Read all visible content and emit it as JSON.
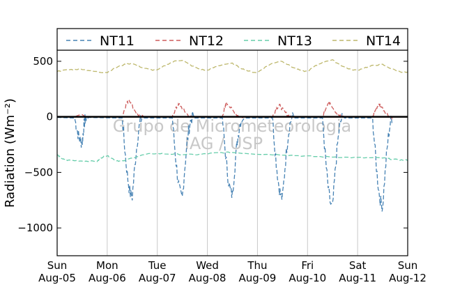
{
  "chart_data": {
    "type": "line",
    "title": "",
    "xlabel": "",
    "ylabel": "Radiation (Wm⁻²)",
    "ylim": [
      -1250,
      600
    ],
    "xlim": [
      0,
      7
    ],
    "x_unit": "days since Sun Aug-05 00:00",
    "xticks": [
      {
        "day": "Sun",
        "date": "Aug-05"
      },
      {
        "day": "Mon",
        "date": "Aug-06"
      },
      {
        "day": "Tue",
        "date": "Aug-07"
      },
      {
        "day": "Wed",
        "date": "Aug-08"
      },
      {
        "day": "Thu",
        "date": "Aug-09"
      },
      {
        "day": "Fri",
        "date": "Aug-10"
      },
      {
        "day": "Sat",
        "date": "Aug-11"
      },
      {
        "day": "Sun",
        "date": "Aug-12"
      }
    ],
    "yticks": [
      500,
      0,
      -500,
      -1000
    ],
    "yticks_labels": [
      "500",
      "0",
      "−500",
      "−1000"
    ],
    "grid": "vertical",
    "legend_position": "top",
    "watermark": [
      "Grupo de Micrometeorologia",
      "IAG / USP"
    ],
    "series": [
      {
        "name": "NT11",
        "color": "#4682b4",
        "kind": "daily_trough",
        "points": [
          [
            0,
            -5
          ],
          [
            0.35,
            -10
          ],
          [
            0.5,
            -230
          ],
          [
            0.58,
            -5
          ],
          [
            1.3,
            -10
          ],
          [
            1.5,
            -720
          ],
          [
            1.7,
            -10
          ],
          [
            2.3,
            -10
          ],
          [
            2.5,
            -730
          ],
          [
            2.7,
            -10
          ],
          [
            3.3,
            -10
          ],
          [
            3.5,
            -700
          ],
          [
            3.7,
            -10
          ],
          [
            4.3,
            -10
          ],
          [
            4.5,
            -730
          ],
          [
            4.7,
            -10
          ],
          [
            5.3,
            -10
          ],
          [
            5.5,
            -820
          ],
          [
            5.7,
            -10
          ],
          [
            6.3,
            -10
          ],
          [
            6.5,
            -800
          ],
          [
            6.7,
            -5
          ]
        ]
      },
      {
        "name": "NT12",
        "color": "#cd5c5c",
        "kind": "daily_peak",
        "points": [
          [
            0,
            0
          ],
          [
            0.35,
            0
          ],
          [
            0.5,
            20
          ],
          [
            0.6,
            0
          ],
          [
            1.3,
            0
          ],
          [
            1.45,
            150
          ],
          [
            1.7,
            0
          ],
          [
            2.3,
            0
          ],
          [
            2.45,
            110
          ],
          [
            2.7,
            0
          ],
          [
            3.3,
            0
          ],
          [
            3.4,
            120
          ],
          [
            3.7,
            0
          ],
          [
            4.3,
            0
          ],
          [
            4.45,
            100
          ],
          [
            4.7,
            0
          ],
          [
            5.3,
            0
          ],
          [
            5.45,
            130
          ],
          [
            5.7,
            0
          ],
          [
            6.3,
            0
          ],
          [
            6.45,
            110
          ],
          [
            6.7,
            0
          ]
        ]
      },
      {
        "name": "NT13",
        "color": "#66cdaa",
        "kind": "baseline",
        "points": [
          [
            0,
            -340
          ],
          [
            0.2,
            -390
          ],
          [
            0.8,
            -400
          ],
          [
            1.0,
            -350
          ],
          [
            1.3,
            -400
          ],
          [
            2.0,
            -330
          ],
          [
            2.8,
            -340
          ],
          [
            3.5,
            -320
          ],
          [
            4.5,
            -340
          ],
          [
            5.5,
            -360
          ],
          [
            6.5,
            -370
          ],
          [
            7.0,
            -390
          ]
        ]
      },
      {
        "name": "NT14",
        "color": "#bdb76b",
        "kind": "baseline",
        "points": [
          [
            0,
            410
          ],
          [
            0.5,
            430
          ],
          [
            1.0,
            400
          ],
          [
            1.5,
            480
          ],
          [
            2.0,
            420
          ],
          [
            2.5,
            510
          ],
          [
            3.0,
            420
          ],
          [
            3.5,
            480
          ],
          [
            4.0,
            400
          ],
          [
            4.5,
            500
          ],
          [
            5.0,
            410
          ],
          [
            5.5,
            510
          ],
          [
            6.0,
            420
          ],
          [
            6.5,
            470
          ],
          [
            7.0,
            400
          ]
        ]
      }
    ]
  }
}
